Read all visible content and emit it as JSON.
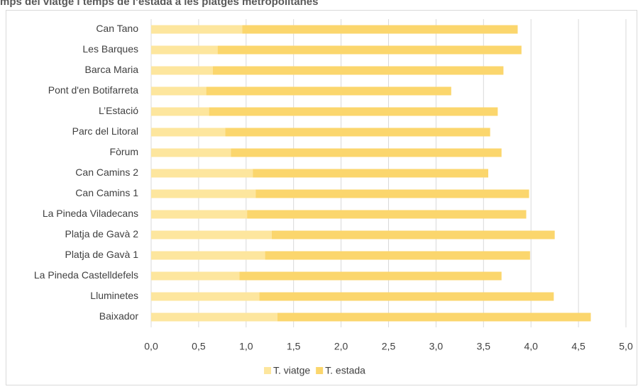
{
  "chart_data": {
    "type": "stacked-bar-horizontal",
    "title": "mps del viatge i temps de l’estada a les platges metropolitanes",
    "categories": [
      "Can Tano",
      "Les Barques",
      "Barca Maria",
      "Pont d'en Botifarreta",
      "L’Estació",
      "Parc del Litoral",
      "Fòrum",
      "Can Camins 2",
      "Can Camins 1",
      "La Pineda Viladecans",
      "Platja de Gavà 2",
      "Platja de Gavà 1",
      "La Pineda Castelldefels",
      "Lluminetes",
      "Baixador"
    ],
    "series": [
      {
        "name": "T. viatge",
        "color": "#fde69e",
        "values": [
          0.96,
          0.7,
          0.65,
          0.58,
          0.61,
          0.78,
          0.84,
          1.07,
          1.1,
          1.01,
          1.27,
          1.2,
          0.93,
          1.14,
          1.33
        ]
      },
      {
        "name": "T. estada",
        "color": "#fbd66d",
        "values": [
          2.9,
          3.2,
          3.06,
          2.58,
          3.04,
          2.79,
          2.85,
          2.48,
          2.88,
          2.94,
          2.98,
          2.79,
          2.76,
          3.1,
          3.3
        ]
      }
    ],
    "xlim": [
      0,
      5
    ],
    "xticks": [
      {
        "value": 0,
        "label": "0,0"
      },
      {
        "value": 0.5,
        "label": "0,5"
      },
      {
        "value": 1,
        "label": "1,0"
      },
      {
        "value": 1.5,
        "label": "1,5"
      },
      {
        "value": 2,
        "label": "2,0"
      },
      {
        "value": 2.5,
        "label": "2,5"
      },
      {
        "value": 3,
        "label": "3,0"
      },
      {
        "value": 3.5,
        "label": "3,5"
      },
      {
        "value": 4,
        "label": "4,0"
      },
      {
        "value": 4.5,
        "label": "4,5"
      },
      {
        "value": 5,
        "label": "5,0"
      }
    ],
    "grid": true,
    "legend": "bottom"
  }
}
